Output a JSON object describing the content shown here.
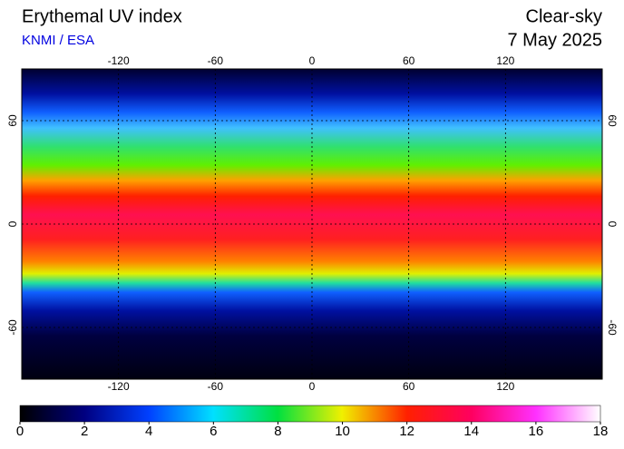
{
  "title": "Erythemal UV index",
  "source": "KNMI / ESA",
  "condition": "Clear-sky",
  "date": "7 May 2025",
  "map": {
    "xlim": [
      -180,
      180
    ],
    "ylim": [
      -90,
      90
    ],
    "xticks": [
      -120,
      -60,
      0,
      60,
      120
    ],
    "yticks": [
      -60,
      0,
      60
    ]
  },
  "colorbar": {
    "lim": [
      0,
      18
    ],
    "ticks": [
      0,
      2,
      4,
      6,
      8,
      10,
      12,
      14,
      16,
      18
    ]
  }
}
